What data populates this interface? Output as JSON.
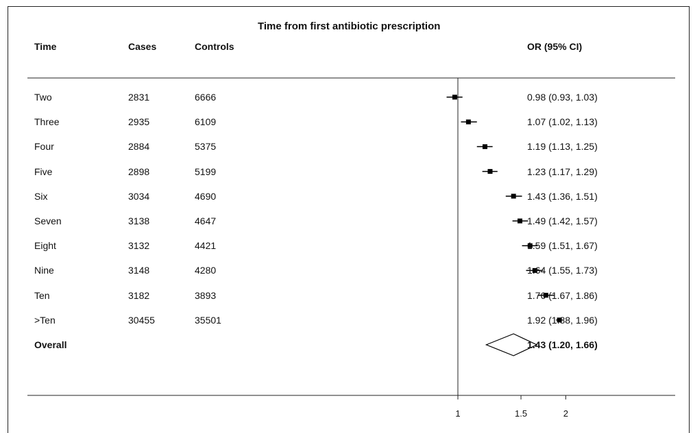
{
  "chart_data": {
    "type": "forest",
    "title": "Time from first antibiotic prescription",
    "columns": {
      "time": "Time",
      "cases": "Cases",
      "controls": "Controls",
      "or": "OR (95% CI)"
    },
    "rows": [
      {
        "time": "Two",
        "cases": "2831",
        "controls": "6666",
        "or": 0.98,
        "lo": 0.93,
        "hi": 1.03,
        "label": "0.98 (0.93, 1.03)"
      },
      {
        "time": "Three",
        "cases": "2935",
        "controls": "6109",
        "or": 1.07,
        "lo": 1.02,
        "hi": 1.13,
        "label": "1.07 (1.02, 1.13)"
      },
      {
        "time": "Four",
        "cases": "2884",
        "controls": "5375",
        "or": 1.19,
        "lo": 1.13,
        "hi": 1.25,
        "label": "1.19 (1.13, 1.25)"
      },
      {
        "time": "Five",
        "cases": "2898",
        "controls": "5199",
        "or": 1.23,
        "lo": 1.17,
        "hi": 1.29,
        "label": "1.23 (1.17, 1.29)"
      },
      {
        "time": "Six",
        "cases": "3034",
        "controls": "4690",
        "or": 1.43,
        "lo": 1.36,
        "hi": 1.51,
        "label": "1.43 (1.36, 1.51)"
      },
      {
        "time": "Seven",
        "cases": "3138",
        "controls": "4647",
        "or": 1.49,
        "lo": 1.42,
        "hi": 1.57,
        "label": "1.49 (1.42, 1.57)"
      },
      {
        "time": "Eight",
        "cases": "3132",
        "controls": "4421",
        "or": 1.59,
        "lo": 1.51,
        "hi": 1.67,
        "label": "1.59 (1.51, 1.67)"
      },
      {
        "time": "Nine",
        "cases": "3148",
        "controls": "4280",
        "or": 1.64,
        "lo": 1.55,
        "hi": 1.73,
        "label": "1.64 (1.55, 1.73)"
      },
      {
        "time": "Ten",
        "cases": "3182",
        "controls": "3893",
        "or": 1.76,
        "lo": 1.67,
        "hi": 1.86,
        "label": "1.76 (1.67, 1.86)"
      },
      {
        "time": ">Ten",
        "cases": "30455",
        "controls": "35501",
        "or": 1.92,
        "lo": 1.88,
        "hi": 1.96,
        "label": "1.92 (1.88, 1.96)"
      }
    ],
    "overall": {
      "time": "Overall",
      "or": 1.43,
      "lo": 1.2,
      "hi": 1.66,
      "label": "1.43 (1.20, 1.66)"
    },
    "x_axis": {
      "scale": "log",
      "ticks": [
        1,
        1.5,
        2
      ],
      "tick_labels": [
        "1",
        "1.5",
        "2"
      ],
      "reference_line": 1
    },
    "grid": false
  }
}
